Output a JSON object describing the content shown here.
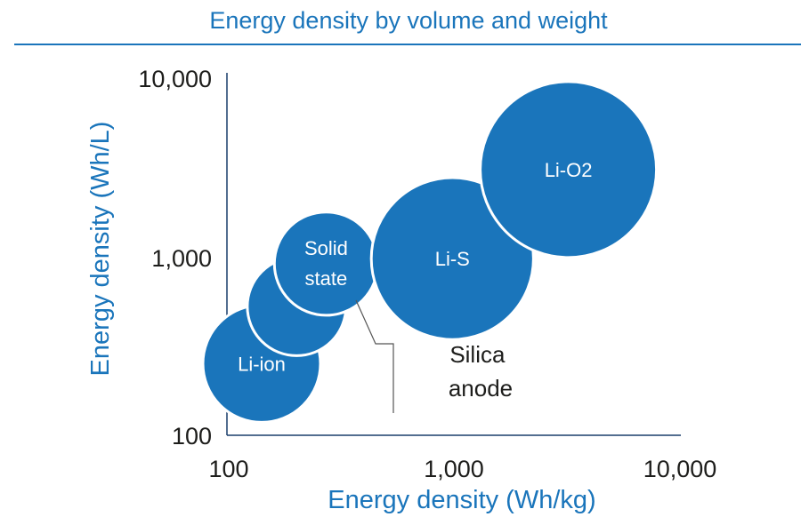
{
  "chart_data": {
    "type": "scatter",
    "title": "Energy density by volume and weight",
    "xlabel": "Energy density (Wh/kg)",
    "ylabel": "Energy density (Wh/L)",
    "xscale": "log",
    "yscale": "log",
    "xlim": [
      100,
      10000
    ],
    "ylim": [
      100,
      10000
    ],
    "xticks": [
      "100",
      "1,000",
      "10,000"
    ],
    "yticks": [
      "100",
      "1,000",
      "10,000"
    ],
    "color": "#1a75bb",
    "points": [
      {
        "label": "Li-ion",
        "x": 140,
        "y": 250,
        "r_rel": 1.0
      },
      {
        "label": "",
        "x": 200,
        "y": 520,
        "r_rel": 0.84
      },
      {
        "label": "Solid state",
        "x": 270,
        "y": 900,
        "r_rel": 0.88
      },
      {
        "label": "Li-S",
        "x": 980,
        "y": 960,
        "r_rel": 1.38
      },
      {
        "label": "Li-O2",
        "x": 3200,
        "y": 3000,
        "r_rel": 1.5
      }
    ],
    "annotations": [
      {
        "text": "Silica anode",
        "target_index": 1
      }
    ]
  }
}
